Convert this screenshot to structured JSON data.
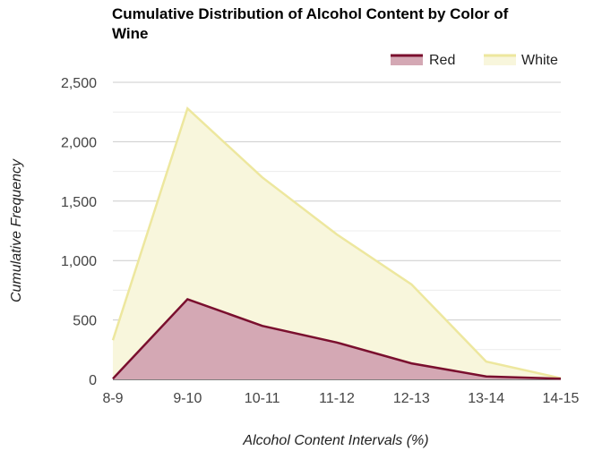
{
  "chart_data": {
    "type": "area",
    "title": "Cumulative Distribution of Alcohol Content by Color of Wine",
    "xlabel": "Alcohol Content Intervals (%)",
    "ylabel": "Cumulative Frequency",
    "categories": [
      "8-9",
      "9-10",
      "10-11",
      "11-12",
      "12-13",
      "13-14",
      "14-15"
    ],
    "yticks": [
      "0",
      "500",
      "1,000",
      "1,500",
      "2,000",
      "2,500"
    ],
    "ylim": [
      0,
      2500
    ],
    "grid": true,
    "legend_position": "top-right",
    "series": [
      {
        "name": "White",
        "values": [
          330,
          2280,
          1700,
          1220,
          800,
          150,
          10
        ],
        "line_color": "#ede79e",
        "fill_color": "#f8f6dc"
      },
      {
        "name": "Red",
        "values": [
          5,
          675,
          450,
          310,
          135,
          25,
          5
        ],
        "line_color": "#7a0f2e",
        "fill_color": "#d4a8b4"
      }
    ]
  }
}
